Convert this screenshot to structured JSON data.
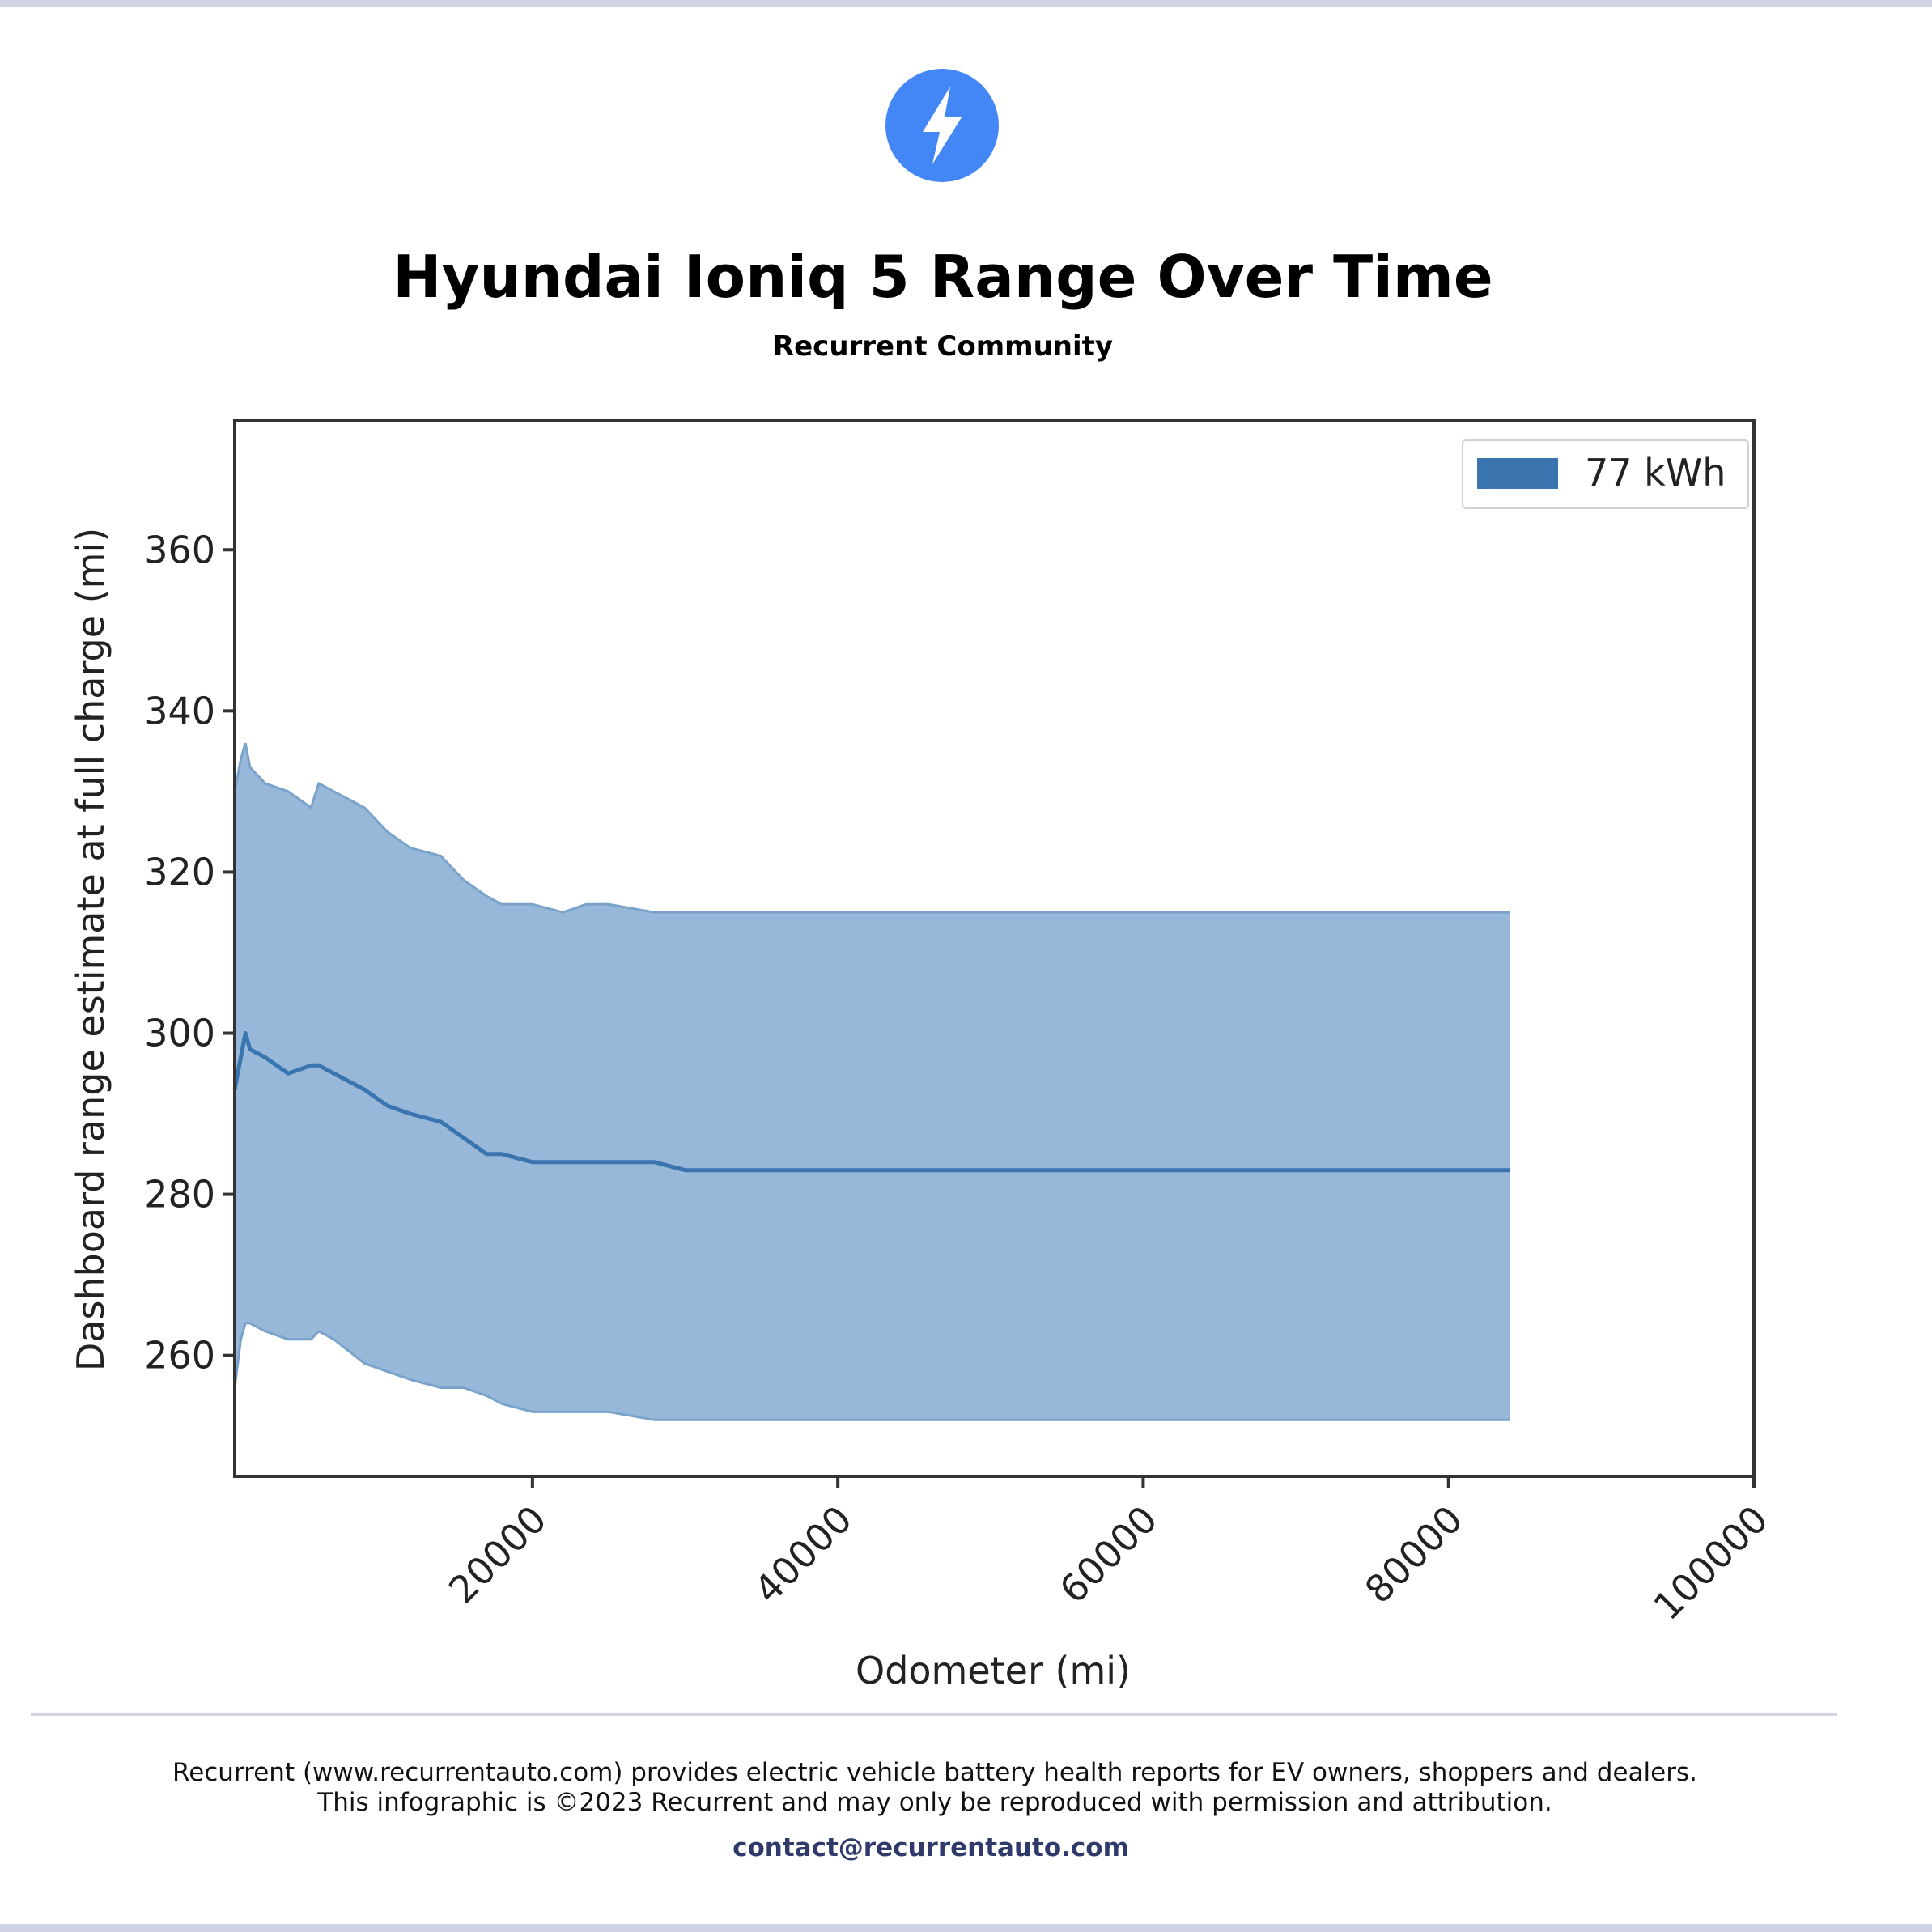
{
  "header": {
    "title": "Hyundai Ioniq 5 Range Over Time",
    "subtitle": "Recurrent Community"
  },
  "brand": {
    "icon": "lightning-bolt-icon",
    "accent_color": "#4287f5"
  },
  "chart_data": {
    "type": "area",
    "xlabel": "Odometer (mi)",
    "ylabel": "Dashboard range estimate at full charge (mi)",
    "xlim": [
      500,
      100000
    ],
    "ylim": [
      245,
      376
    ],
    "xticks": [
      20000,
      40000,
      60000,
      80000,
      100000
    ],
    "yticks": [
      260,
      280,
      300,
      320,
      340,
      360
    ],
    "legend": {
      "position": "top-right",
      "entries": [
        "77 kWh"
      ]
    },
    "grid": false,
    "series": [
      {
        "name": "77 kWh",
        "color": "#3a75b0",
        "band_color": "#97b8d8",
        "x": [
          500,
          900,
          1200,
          1500,
          2500,
          4000,
          5500,
          6000,
          7000,
          9000,
          10500,
          12000,
          14000,
          15500,
          17000,
          18000,
          20000,
          22000,
          23500,
          25000,
          28000,
          30000,
          32000,
          36000,
          40000,
          45000,
          50000,
          60000,
          70000,
          84000
        ],
        "mean": [
          293,
          297,
          300,
          298,
          297,
          295,
          296,
          296,
          295,
          293,
          291,
          290,
          289,
          287,
          285,
          285,
          284,
          284,
          284,
          284,
          284,
          283,
          283,
          283,
          283,
          283,
          283,
          283,
          283,
          283
        ],
        "upper": [
          330,
          334,
          336,
          333,
          331,
          330,
          328,
          331,
          330,
          328,
          325,
          323,
          322,
          319,
          317,
          316,
          316,
          315,
          316,
          316,
          315,
          315,
          315,
          315,
          315,
          315,
          315,
          315,
          315,
          315
        ],
        "lower": [
          256,
          262,
          264,
          264,
          263,
          262,
          262,
          263,
          262,
          259,
          258,
          257,
          256,
          256,
          255,
          254,
          253,
          253,
          253,
          253,
          252,
          252,
          252,
          252,
          252,
          252,
          252,
          252,
          252,
          252
        ]
      }
    ]
  },
  "footer": {
    "line1": "Recurrent (www.recurrentauto.com) provides electric vehicle battery health reports for EV owners, shoppers and dealers.",
    "line2": "This infographic is ©2023 Recurrent and may only be reproduced with permission and attribution.",
    "contact": "contact@recurrentauto.com"
  }
}
